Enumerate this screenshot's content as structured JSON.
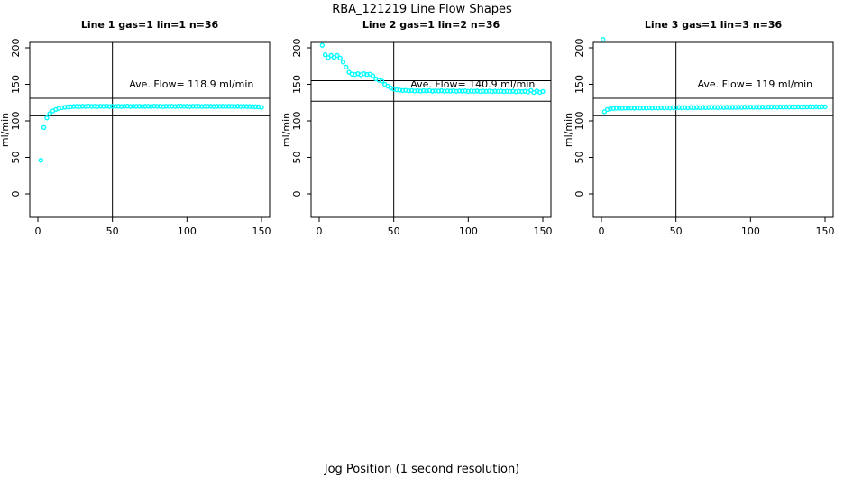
{
  "figure": {
    "title": "RBA_121219  Line Flow Shapes",
    "xlabel": "Jog Position (1 second resolution)"
  },
  "chart_data": [
    {
      "type": "scatter",
      "title": "Line 1 gas=1 lin=1 n=36",
      "ylabel": "ml/min",
      "annotation": "Ave. Flow=  118.9  ml/min",
      "ave_flow": 118.9,
      "marker_color": "#00FFFF",
      "line_color": "#000000",
      "xlim": [
        0,
        150
      ],
      "ylim": [
        0,
        200
      ],
      "xticks": [
        0,
        50,
        100,
        150
      ],
      "yticks": [
        0,
        50,
        100,
        150,
        200
      ],
      "vline_x": 50,
      "hlines": [
        130.8,
        107.0
      ],
      "points": [
        [
          2,
          46
        ],
        [
          4,
          91
        ],
        [
          6,
          104
        ],
        [
          8,
          110
        ],
        [
          10,
          113.5
        ],
        [
          12,
          115.5
        ],
        [
          14,
          117
        ],
        [
          16,
          118
        ],
        [
          18,
          118.6
        ],
        [
          20,
          119
        ],
        [
          22,
          119.3
        ],
        [
          24,
          119.6
        ],
        [
          26,
          119.8
        ],
        [
          28,
          119.6
        ],
        [
          30,
          120
        ],
        [
          32,
          119.7
        ],
        [
          34,
          120.1
        ],
        [
          36,
          119.8
        ],
        [
          38,
          120
        ],
        [
          40,
          119.6
        ],
        [
          42,
          120
        ],
        [
          44,
          119.8
        ],
        [
          46,
          120.1
        ],
        [
          48,
          119.7
        ],
        [
          50,
          120
        ],
        [
          52,
          119.8
        ],
        [
          54,
          120
        ],
        [
          56,
          119.6
        ],
        [
          58,
          119.9
        ],
        [
          60,
          120.1
        ],
        [
          62,
          119.7
        ],
        [
          64,
          120
        ],
        [
          66,
          119.8
        ],
        [
          68,
          120
        ],
        [
          70,
          119.6
        ],
        [
          72,
          119.9
        ],
        [
          74,
          120
        ],
        [
          76,
          119.7
        ],
        [
          78,
          120.1
        ],
        [
          80,
          119.8
        ],
        [
          82,
          119.9
        ],
        [
          84,
          119.6
        ],
        [
          86,
          120
        ],
        [
          88,
          119.8
        ],
        [
          90,
          120
        ],
        [
          92,
          119.7
        ],
        [
          94,
          119.9
        ],
        [
          96,
          120.1
        ],
        [
          98,
          119.8
        ],
        [
          100,
          119.9
        ],
        [
          102,
          119.6
        ],
        [
          104,
          120
        ],
        [
          106,
          119.8
        ],
        [
          108,
          119.9
        ],
        [
          110,
          119.7
        ],
        [
          112,
          120
        ],
        [
          114,
          119.8
        ],
        [
          116,
          119.9
        ],
        [
          118,
          119.6
        ],
        [
          120,
          120
        ],
        [
          122,
          119.8
        ],
        [
          124,
          119.9
        ],
        [
          126,
          119.7
        ],
        [
          128,
          119.9
        ],
        [
          130,
          119.8
        ],
        [
          132,
          119.6
        ],
        [
          134,
          119.9
        ],
        [
          136,
          119.7
        ],
        [
          138,
          119.8
        ],
        [
          140,
          119.6
        ],
        [
          142,
          119.7
        ],
        [
          144,
          119.5
        ],
        [
          146,
          119.3
        ],
        [
          148,
          119.2
        ],
        [
          150,
          118.4
        ]
      ]
    },
    {
      "type": "scatter",
      "title": "Line 2 gas=1 lin=2 n=36",
      "ylabel": "ml/min",
      "annotation": "Ave. Flow=  140.9  ml/min",
      "ave_flow": 140.9,
      "marker_color": "#00FFFF",
      "line_color": "#000000",
      "xlim": [
        0,
        150
      ],
      "ylim": [
        0,
        200
      ],
      "xticks": [
        0,
        50,
        100,
        150
      ],
      "yticks": [
        0,
        50,
        100,
        150,
        200
      ],
      "vline_x": 50,
      "hlines": [
        155.0,
        126.8
      ],
      "points": [
        [
          2,
          203.5
        ],
        [
          4,
          190.5
        ],
        [
          6,
          186.5
        ],
        [
          8,
          189.5
        ],
        [
          10,
          187
        ],
        [
          12,
          189.5
        ],
        [
          14,
          186
        ],
        [
          16,
          180.5
        ],
        [
          18,
          173.5
        ],
        [
          20,
          166.5
        ],
        [
          22,
          164
        ],
        [
          24,
          163.5
        ],
        [
          26,
          164.5
        ],
        [
          28,
          163
        ],
        [
          30,
          164.5
        ],
        [
          32,
          163.5
        ],
        [
          34,
          164
        ],
        [
          36,
          161.5
        ],
        [
          38,
          157.5
        ],
        [
          40,
          155.5
        ],
        [
          42,
          154.5
        ],
        [
          44,
          150
        ],
        [
          46,
          147.5
        ],
        [
          48,
          145
        ],
        [
          50,
          143.5
        ],
        [
          52,
          142.5
        ],
        [
          54,
          142
        ],
        [
          56,
          141.5
        ],
        [
          58,
          141.8
        ],
        [
          60,
          141
        ],
        [
          62,
          141.5
        ],
        [
          64,
          140.8
        ],
        [
          66,
          141.3
        ],
        [
          68,
          140.7
        ],
        [
          70,
          141.2
        ],
        [
          72,
          140.9
        ],
        [
          74,
          141.4
        ],
        [
          76,
          140.6
        ],
        [
          78,
          141.1
        ],
        [
          80,
          140.8
        ],
        [
          82,
          141.2
        ],
        [
          84,
          140.5
        ],
        [
          86,
          141
        ],
        [
          88,
          140.7
        ],
        [
          90,
          141.1
        ],
        [
          92,
          140.4
        ],
        [
          94,
          140.9
        ],
        [
          96,
          140.6
        ],
        [
          98,
          141
        ],
        [
          100,
          140.3
        ],
        [
          102,
          140.8
        ],
        [
          104,
          140.5
        ],
        [
          106,
          140.9
        ],
        [
          108,
          140.2
        ],
        [
          110,
          140.7
        ],
        [
          112,
          140.4
        ],
        [
          114,
          140.8
        ],
        [
          116,
          140.1
        ],
        [
          118,
          140.6
        ],
        [
          120,
          140.3
        ],
        [
          122,
          140.7
        ],
        [
          124,
          140
        ],
        [
          126,
          140.5
        ],
        [
          128,
          140.2
        ],
        [
          130,
          140.6
        ],
        [
          132,
          139.9
        ],
        [
          134,
          140.4
        ],
        [
          136,
          140.1
        ],
        [
          138,
          140.5
        ],
        [
          140,
          139.4
        ],
        [
          142,
          141.6
        ],
        [
          144,
          138.8
        ],
        [
          146,
          140.9
        ],
        [
          148,
          138.9
        ],
        [
          150,
          140.2
        ]
      ]
    },
    {
      "type": "scatter",
      "title": "Line 3 gas=1 lin=3 n=36",
      "ylabel": "ml/min",
      "annotation": "Ave. Flow=  119  ml/min",
      "ave_flow": 119,
      "marker_color": "#00FFFF",
      "line_color": "#000000",
      "xlim": [
        0,
        150
      ],
      "ylim": [
        0,
        200
      ],
      "xticks": [
        0,
        50,
        100,
        150
      ],
      "yticks": [
        0,
        50,
        100,
        150,
        200
      ],
      "vline_x": 50,
      "hlines": [
        130.9,
        107.1
      ],
      "points": [
        [
          1,
          211.5
        ],
        [
          2,
          112.5
        ],
        [
          4,
          115.5
        ],
        [
          6,
          116.5
        ],
        [
          8,
          117
        ],
        [
          10,
          117.2
        ],
        [
          12,
          117.3
        ],
        [
          14,
          117.4
        ],
        [
          16,
          117.6
        ],
        [
          18,
          117.3
        ],
        [
          20,
          117.7
        ],
        [
          22,
          117.4
        ],
        [
          24,
          117.8
        ],
        [
          26,
          117.5
        ],
        [
          28,
          117.8
        ],
        [
          30,
          117.6
        ],
        [
          32,
          117.9
        ],
        [
          34,
          117.6
        ],
        [
          36,
          118
        ],
        [
          38,
          117.7
        ],
        [
          40,
          118
        ],
        [
          42,
          117.8
        ],
        [
          44,
          118.1
        ],
        [
          46,
          117.8
        ],
        [
          48,
          118.1
        ],
        [
          50,
          117.9
        ],
        [
          52,
          118.2
        ],
        [
          54,
          117.9
        ],
        [
          56,
          118.2
        ],
        [
          58,
          118
        ],
        [
          60,
          118.3
        ],
        [
          62,
          118
        ],
        [
          64,
          118.3
        ],
        [
          66,
          118.1
        ],
        [
          68,
          118.4
        ],
        [
          70,
          118.1
        ],
        [
          72,
          118.4
        ],
        [
          74,
          118.2
        ],
        [
          76,
          118.5
        ],
        [
          78,
          118.2
        ],
        [
          80,
          118.5
        ],
        [
          82,
          118.3
        ],
        [
          84,
          118.6
        ],
        [
          86,
          118.3
        ],
        [
          88,
          118.6
        ],
        [
          90,
          118.4
        ],
        [
          92,
          118.7
        ],
        [
          94,
          118.4
        ],
        [
          96,
          118.7
        ],
        [
          98,
          118.5
        ],
        [
          100,
          118.8
        ],
        [
          102,
          118.5
        ],
        [
          104,
          118.8
        ],
        [
          106,
          118.6
        ],
        [
          108,
          118.9
        ],
        [
          110,
          118.6
        ],
        [
          112,
          118.9
        ],
        [
          114,
          118.7
        ],
        [
          116,
          119
        ],
        [
          118,
          118.7
        ],
        [
          120,
          119
        ],
        [
          122,
          118.8
        ],
        [
          124,
          119.1
        ],
        [
          126,
          118.8
        ],
        [
          128,
          119.1
        ],
        [
          130,
          118.9
        ],
        [
          132,
          119.2
        ],
        [
          134,
          118.9
        ],
        [
          136,
          119.2
        ],
        [
          138,
          119
        ],
        [
          140,
          119.3
        ],
        [
          142,
          119
        ],
        [
          144,
          119.3
        ],
        [
          146,
          119.1
        ],
        [
          148,
          119.4
        ],
        [
          150,
          119.2
        ]
      ]
    }
  ]
}
